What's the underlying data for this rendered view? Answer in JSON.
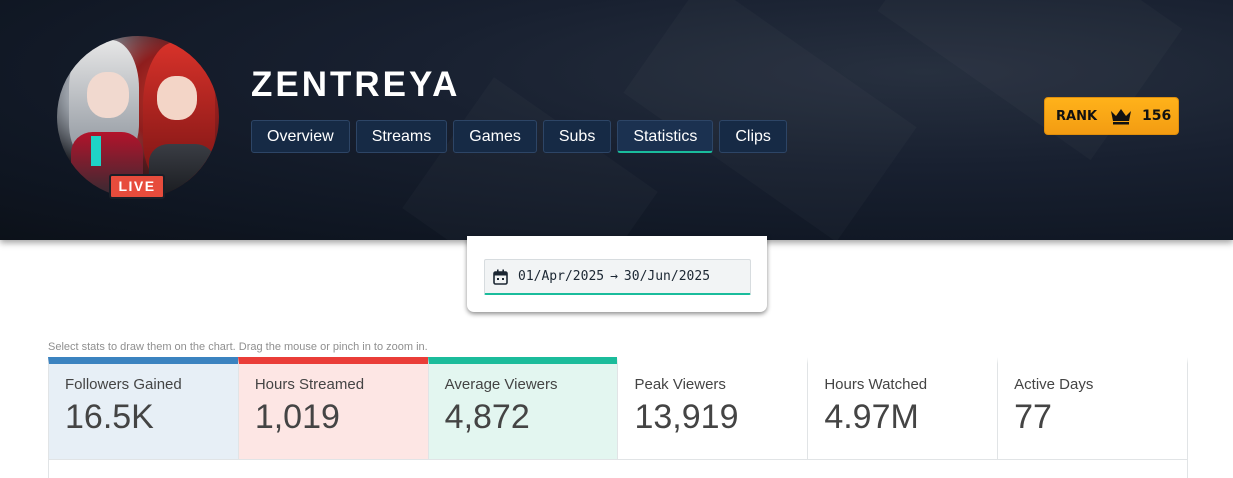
{
  "channel": {
    "name": "ZENTREYA",
    "live_label": "LIVE"
  },
  "tabs": [
    {
      "label": "Overview"
    },
    {
      "label": "Streams"
    },
    {
      "label": "Games"
    },
    {
      "label": "Subs"
    },
    {
      "label": "Statistics",
      "active": true
    },
    {
      "label": "Clips"
    }
  ],
  "rank": {
    "label": "RANK",
    "value": "156"
  },
  "date_range": {
    "start": "01/Apr/2025",
    "arrow": "→",
    "end": "30/Jun/2025"
  },
  "hint": "Select stats to draw them on the chart. Drag the mouse or pinch in to zoom in.",
  "stats": [
    {
      "label": "Followers Gained",
      "value": "16.5K",
      "color": "#3b83c0"
    },
    {
      "label": "Hours Streamed",
      "value": "1,019",
      "color": "#ea3d38"
    },
    {
      "label": "Average Viewers",
      "value": "4,872",
      "color": "#1bbc9b"
    },
    {
      "label": "Peak Viewers",
      "value": "13,919"
    },
    {
      "label": "Hours Watched",
      "value": "4.97M"
    },
    {
      "label": "Active Days",
      "value": "77"
    }
  ],
  "colors": {
    "accent": "#1abc9c",
    "rank_badge": "#f39c12",
    "live": "#e74c3c",
    "header_bg": "#141b27"
  },
  "icons": [
    "crown-icon",
    "calendar-icon",
    "arrow-right-icon"
  ]
}
